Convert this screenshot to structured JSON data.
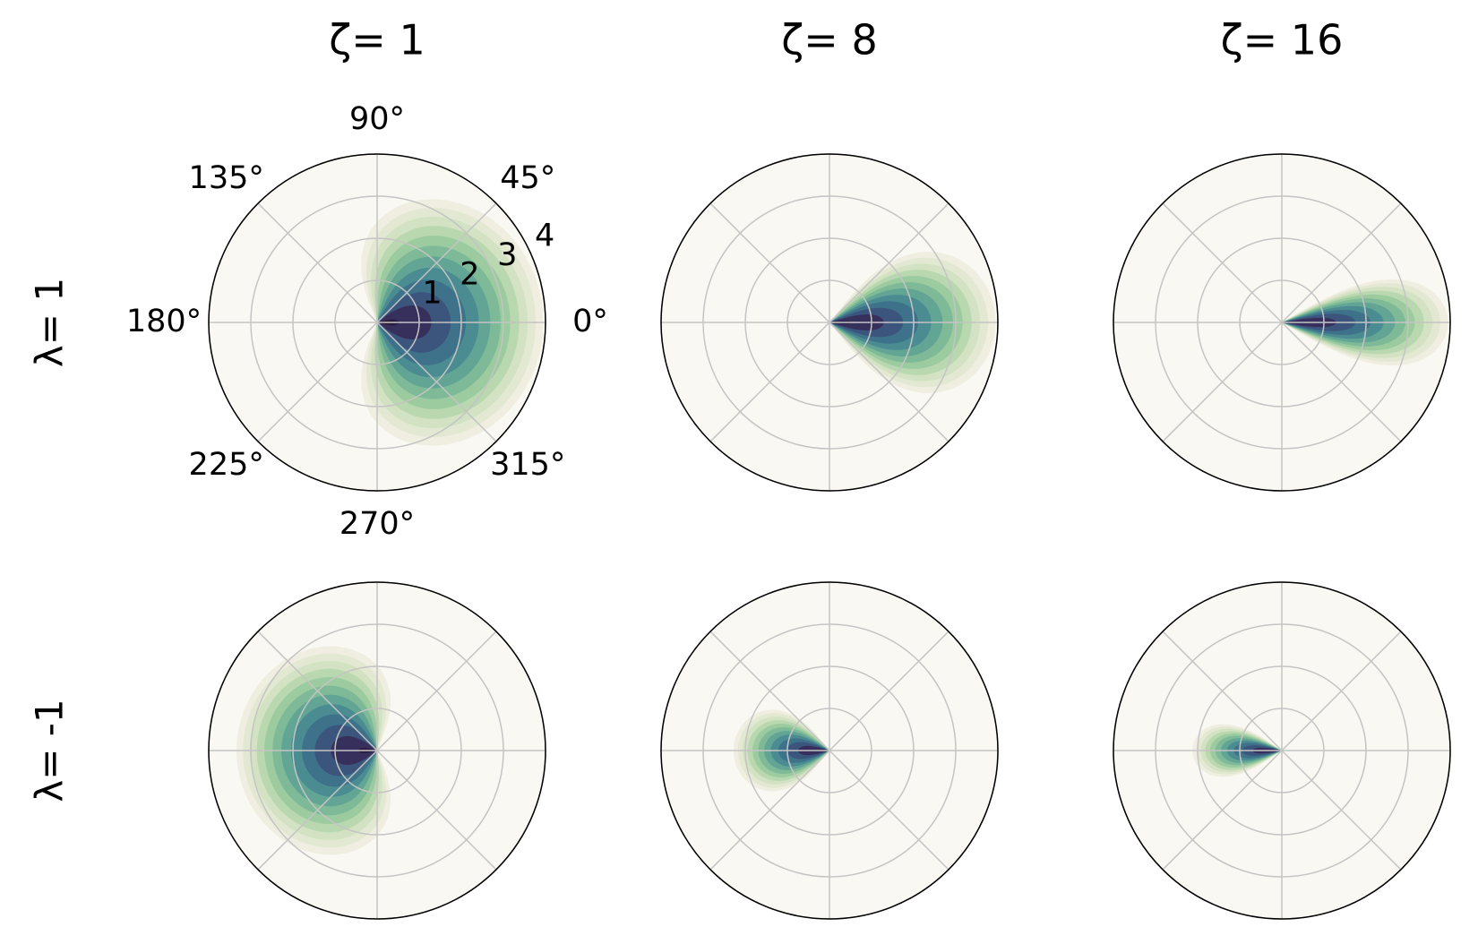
{
  "chart_data": {
    "type": "polar-contour",
    "column_titles": [
      "ζ=  1",
      "ζ=  8",
      "ζ= 16"
    ],
    "row_titles": [
      "λ=  1",
      "λ= -1"
    ],
    "rlim": [
      0,
      4
    ],
    "rticks": [
      1,
      2,
      3,
      4
    ],
    "thetaticks": [
      {
        "value": 0,
        "label": "0°"
      },
      {
        "value": 45,
        "label": "45°"
      },
      {
        "value": 90,
        "label": "90°"
      },
      {
        "value": 135,
        "label": "135°"
      },
      {
        "value": 180,
        "label": "180°"
      },
      {
        "value": 225,
        "label": "225°"
      },
      {
        "value": 270,
        "label": "270°"
      },
      {
        "value": 315,
        "label": "315°"
      }
    ],
    "grid": true
  }
}
